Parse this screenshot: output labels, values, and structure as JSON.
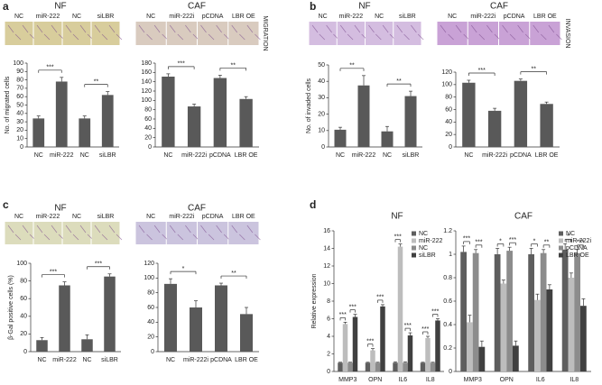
{
  "chart_data": [
    {
      "type": "bar",
      "panel_label": "a",
      "title": "NF",
      "image_labels": [
        "NC",
        "miR-222",
        "NC",
        "siLBR"
      ],
      "image_color": "#d8cd9c",
      "ylabel": "No. of migrated cells",
      "categories": [
        "NC",
        "miR-222",
        "NC",
        "siLBR"
      ],
      "values": [
        34,
        78,
        34,
        62
      ],
      "errors": [
        3,
        5,
        3,
        4
      ],
      "color": "#595959",
      "ylim": [
        0,
        100
      ],
      "yticks": [
        0,
        10,
        20,
        30,
        40,
        50,
        60,
        70,
        80,
        90,
        100
      ],
      "significance": [
        "***",
        "**"
      ]
    },
    {
      "type": "bar",
      "title": "CAF",
      "image_labels": [
        "NC",
        "miR-222i",
        "pCDNA",
        "LBR OE"
      ],
      "image_color": "#d9cbbf",
      "side_label": "MIGRATION",
      "categories": [
        "NC",
        "miR-222i",
        "pCDNA",
        "LBR OE"
      ],
      "values": [
        151,
        87,
        148,
        103
      ],
      "errors": [
        6,
        5,
        6,
        5
      ],
      "color": "#595959",
      "ylim": [
        0,
        180
      ],
      "yticks": [
        0,
        20,
        40,
        60,
        80,
        100,
        120,
        140,
        160,
        180
      ],
      "significance": [
        "***",
        "**"
      ]
    },
    {
      "type": "bar",
      "panel_label": "b",
      "title": "NF",
      "image_labels": [
        "NC",
        "miR-222",
        "NC",
        "siLBR"
      ],
      "image_color": "#d4bde0",
      "ylabel": "No. of invaded cells",
      "categories": [
        "NC",
        "miR-222",
        "NC",
        "siLBR"
      ],
      "values": [
        10.5,
        37.5,
        9.5,
        31
      ],
      "errors": [
        1.5,
        6,
        3,
        3
      ],
      "color": "#595959",
      "ylim": [
        0,
        50
      ],
      "yticks": [
        0,
        10,
        20,
        30,
        40,
        50
      ],
      "significance": [
        "**",
        "**"
      ]
    },
    {
      "type": "bar",
      "title": "CAF",
      "image_labels": [
        "NC",
        "miR-222i",
        "pCDNA",
        "LBR OE"
      ],
      "image_color": "#c9a2d6",
      "side_label": "INVASION",
      "categories": [
        "NC",
        "miR-222i",
        "pCDNA",
        "LBR OE"
      ],
      "values": [
        103,
        58,
        106,
        69
      ],
      "errors": [
        4,
        4,
        3,
        3
      ],
      "color": "#595959",
      "ylim": [
        0,
        120
      ],
      "yticks": [
        0,
        20,
        40,
        60,
        80,
        100,
        120
      ],
      "significance": [
        "***",
        "**"
      ]
    },
    {
      "type": "bar",
      "panel_label": "c",
      "title": "NF",
      "image_labels": [
        "NC",
        "miR-222",
        "NC",
        "siLBR"
      ],
      "image_color": "#dcdcbc",
      "ylabel": "β-Gal positive cells (%)",
      "categories": [
        "NC",
        "miR-222",
        "NC",
        "siLBR"
      ],
      "values": [
        13,
        75,
        14,
        85
      ],
      "errors": [
        3,
        4,
        5,
        3
      ],
      "color": "#595959",
      "ylim": [
        0,
        100
      ],
      "yticks": [
        0,
        20,
        40,
        60,
        80,
        100
      ],
      "significance": [
        "***",
        "***"
      ]
    },
    {
      "type": "bar",
      "title": "CAF",
      "image_labels": [
        "NC",
        "miR-222i",
        "pCDNA",
        "LBR OE"
      ],
      "image_color": "#cbc4de",
      "categories": [
        "NC",
        "miR-222i",
        "pCDNA",
        "LBR OE"
      ],
      "values": [
        92,
        60,
        90,
        51
      ],
      "errors": [
        7,
        9,
        3,
        9
      ],
      "color": "#595959",
      "ylim": [
        0,
        120
      ],
      "yticks": [
        0,
        20,
        40,
        60,
        80,
        100,
        120
      ],
      "significance": [
        "*",
        "**"
      ]
    },
    {
      "type": "bar",
      "panel_label": "d",
      "title": "NF",
      "ylabel": "Relative expression",
      "categories": [
        "MMP3",
        "OPN",
        "IL6",
        "IL8"
      ],
      "series": [
        {
          "name": "NC",
          "color": "#5e5e5e",
          "values": [
            1,
            1,
            1,
            1
          ],
          "errors": [
            0.05,
            0.05,
            0.1,
            0.05
          ]
        },
        {
          "name": "miR-222",
          "color": "#bdbdbd",
          "values": [
            5.4,
            2.4,
            14.2,
            3.8
          ],
          "errors": [
            0.2,
            0.2,
            0.3,
            0.2
          ]
        },
        {
          "name": "NC",
          "color": "#8c8c8c",
          "values": [
            1,
            1,
            1,
            1
          ],
          "errors": [
            0.05,
            0.05,
            0.1,
            0.05
          ]
        },
        {
          "name": "siLBR",
          "color": "#404040",
          "values": [
            6.2,
            7.4,
            4.1,
            5.8
          ],
          "errors": [
            0.3,
            0.2,
            0.3,
            0.2
          ]
        }
      ],
      "ylim": [
        0,
        16
      ],
      "yticks": [
        0,
        2,
        4,
        6,
        8,
        10,
        12,
        14,
        16
      ],
      "legend": "upper right",
      "significance": [
        [
          "***",
          "***"
        ],
        [
          "***",
          "***"
        ],
        [
          "***",
          "***"
        ],
        [
          "***",
          "***"
        ]
      ]
    },
    {
      "type": "bar",
      "title": "CAF",
      "categories": [
        "MMP3",
        "OPN",
        "IL6",
        "IL8"
      ],
      "series": [
        {
          "name": "NC",
          "color": "#5e5e5e",
          "values": [
            1.02,
            1.0,
            1.0,
            1.04
          ],
          "errors": [
            0.05,
            0.05,
            0.05,
            0.05
          ]
        },
        {
          "name": "miR-222i",
          "color": "#bdbdbd",
          "values": [
            0.42,
            0.75,
            0.61,
            0.8
          ],
          "errors": [
            0.06,
            0.03,
            0.05,
            0.04
          ]
        },
        {
          "name": "pCDNA",
          "color": "#8c8c8c",
          "values": [
            1.01,
            1.03,
            1.01,
            1.01
          ],
          "errors": [
            0.03,
            0.03,
            0.03,
            0.03
          ]
        },
        {
          "name": "LBR OE",
          "color": "#404040",
          "values": [
            0.21,
            0.22,
            0.7,
            0.56
          ],
          "errors": [
            0.05,
            0.04,
            0.04,
            0.06
          ]
        }
      ],
      "ylim": [
        0,
        1.2
      ],
      "yticks": [
        0,
        0.2,
        0.4,
        0.6,
        0.8,
        1,
        1.2
      ],
      "legend": "upper right",
      "significance": [
        [
          "***",
          "***"
        ],
        [
          "*",
          "***"
        ],
        [
          "*",
          "**"
        ],
        [
          "*",
          "***"
        ]
      ]
    }
  ]
}
